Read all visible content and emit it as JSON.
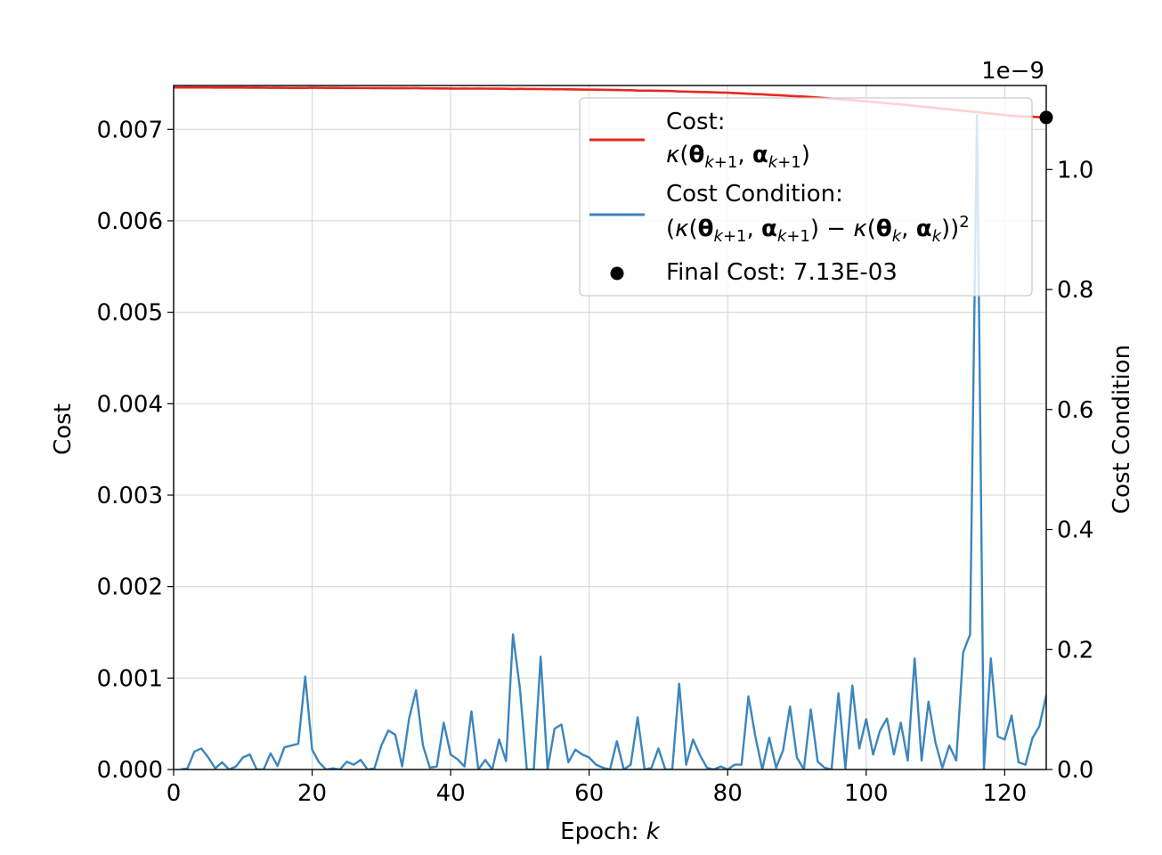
{
  "chart_data": {
    "type": "line",
    "xlabel": "Epoch: ",
    "xlabel_italic": "k",
    "ylabel_left": "Cost",
    "ylabel_right": "Cost Condition",
    "right_offset_label": "1e−9",
    "xlim": [
      0,
      126
    ],
    "ylim_left": [
      0,
      0.00748
    ],
    "ylim_right": [
      0,
      1.14
    ],
    "x_ticks": [
      0,
      20,
      40,
      60,
      80,
      100,
      120
    ],
    "x_tick_labels": [
      "0",
      "20",
      "40",
      "60",
      "80",
      "100",
      "120"
    ],
    "y_left_ticks": [
      0,
      0.001,
      0.002,
      0.003,
      0.004,
      0.005,
      0.006,
      0.007
    ],
    "y_left_tick_labels": [
      "0.000",
      "0.001",
      "0.002",
      "0.003",
      "0.004",
      "0.005",
      "0.006",
      "0.007"
    ],
    "y_right_ticks": [
      0,
      0.2,
      0.4,
      0.6,
      0.8,
      1.0
    ],
    "y_right_tick_labels": [
      "0.0",
      "0.2",
      "0.4",
      "0.6",
      "0.8",
      "1.0"
    ],
    "grid": true,
    "legend_placement": "upper-right",
    "series": [
      {
        "name": "Cost:",
        "name_line2": "κ(θk+1, αk+1)",
        "axis": "left",
        "color": "#e8271f",
        "x_start": 0,
        "values": [
          0.007458,
          0.007458,
          0.00746,
          0.007458,
          0.007459,
          0.007458,
          0.007457,
          0.007458,
          0.007457,
          0.007457,
          0.007457,
          0.007456,
          0.007457,
          0.007456,
          0.007455,
          0.007456,
          0.007455,
          0.007454,
          0.007455,
          0.007454,
          0.007456,
          0.007455,
          0.007454,
          0.007455,
          0.007454,
          0.007453,
          0.007453,
          0.007452,
          0.007452,
          0.007451,
          0.007452,
          0.007451,
          0.00745,
          0.007451,
          0.00745,
          0.007452,
          0.007449,
          0.007449,
          0.007448,
          0.007448,
          0.007447,
          0.007446,
          0.007447,
          0.007446,
          0.007447,
          0.007446,
          0.007445,
          0.007445,
          0.007444,
          0.007442,
          0.007444,
          0.007442,
          0.007442,
          0.00744,
          0.007441,
          0.007439,
          0.007439,
          0.007438,
          0.007437,
          0.007436,
          0.007435,
          0.007434,
          0.007433,
          0.007432,
          0.007431,
          0.007429,
          0.007428,
          0.007425,
          0.007424,
          0.007423,
          0.007422,
          0.007421,
          0.007419,
          0.007415,
          0.007413,
          0.007411,
          0.007409,
          0.007408,
          0.007405,
          0.007403,
          0.007401,
          0.007397,
          0.007394,
          0.007389,
          0.007386,
          0.007383,
          0.007378,
          0.007375,
          0.007371,
          0.007366,
          0.007362,
          0.007359,
          0.007354,
          0.007348,
          0.007343,
          0.007337,
          0.007331,
          0.007325,
          0.00732,
          0.007313,
          0.007306,
          0.007299,
          0.007293,
          0.007286,
          0.007279,
          0.007272,
          0.007265,
          0.007257,
          0.00725,
          0.007242,
          0.007235,
          0.007227,
          0.00722,
          0.007212,
          0.007204,
          0.007196,
          0.007189,
          0.00718,
          0.007172,
          0.007164,
          0.007157,
          0.007149,
          0.007143,
          0.00714,
          0.007138,
          0.007134,
          0.00713
        ]
      },
      {
        "name": "Cost Condition:",
        "name_line2": "(κ(θk+1, αk+1) − κ(θk, αk))2",
        "axis": "right",
        "color": "#3b86bd",
        "x_start": 1,
        "values": [
          0.0,
          0.002,
          0.03,
          0.035,
          0.02,
          0.002,
          0.012,
          0.0,
          0.005,
          0.02,
          0.025,
          0.0,
          0.0,
          0.027,
          0.006,
          0.037,
          0.04,
          0.043,
          0.155,
          0.033,
          0.012,
          0.0,
          0.002,
          0.0,
          0.013,
          0.008,
          0.016,
          0.0,
          0.002,
          0.04,
          0.065,
          0.058,
          0.005,
          0.085,
          0.132,
          0.04,
          0.003,
          0.005,
          0.078,
          0.025,
          0.017,
          0.005,
          0.097,
          0.0,
          0.016,
          0.0,
          0.05,
          0.014,
          0.225,
          0.135,
          0.0,
          0.0,
          0.188,
          0.0,
          0.068,
          0.075,
          0.012,
          0.033,
          0.025,
          0.02,
          0.008,
          0.003,
          0.0,
          0.047,
          0.0,
          0.008,
          0.087,
          0.0,
          0.003,
          0.035,
          0.0,
          0.0,
          0.143,
          0.008,
          0.05,
          0.024,
          0.003,
          0.0,
          0.005,
          0.0,
          0.008,
          0.008,
          0.122,
          0.055,
          0.0,
          0.053,
          0.003,
          0.032,
          0.105,
          0.02,
          0.0,
          0.1,
          0.013,
          0.003,
          0.0,
          0.127,
          0.002,
          0.14,
          0.035,
          0.084,
          0.025,
          0.065,
          0.085,
          0.025,
          0.078,
          0.015,
          0.185,
          0.015,
          0.113,
          0.045,
          0.003,
          0.04,
          0.015,
          0.195,
          0.225,
          1.09,
          0.0,
          0.185,
          0.055,
          0.05,
          0.09,
          0.012,
          0.008,
          0.052,
          0.072,
          0.123,
          0.08
        ]
      }
    ],
    "final_point": {
      "label": "Final Cost: 7.13E-03",
      "x": 126,
      "y": 0.00713,
      "color": "#000000"
    }
  }
}
